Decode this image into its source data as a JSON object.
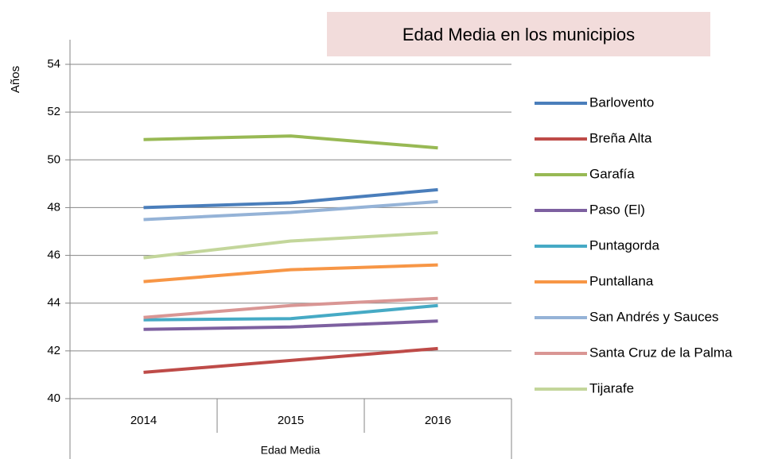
{
  "chart_data": {
    "type": "line",
    "title": "Edad Media en los municipios",
    "y_label": "Años",
    "x_label": "Edad Media",
    "categories": [
      "2014",
      "2015",
      "2016"
    ],
    "series": [
      {
        "name": "Barlovento",
        "color": "#4a7ebb",
        "values": [
          48.0,
          48.2,
          48.75
        ]
      },
      {
        "name": "Breña Alta",
        "color": "#be4b48",
        "values": [
          41.1,
          41.6,
          42.1
        ]
      },
      {
        "name": "Garafía",
        "color": "#98b954",
        "values": [
          50.85,
          51.0,
          50.5
        ]
      },
      {
        "name": "Paso (El)",
        "color": "#7d60a0",
        "values": [
          42.9,
          43.0,
          43.25
        ]
      },
      {
        "name": "Puntagorda",
        "color": "#46aac5",
        "values": [
          43.3,
          43.35,
          43.9
        ]
      },
      {
        "name": "Puntallana",
        "color": "#f79646",
        "values": [
          44.9,
          45.4,
          45.6
        ]
      },
      {
        "name": "San Andrés y Sauces",
        "color": "#95b3d7",
        "values": [
          47.5,
          47.8,
          48.25
        ]
      },
      {
        "name": "Santa Cruz de la Palma",
        "color": "#d99694",
        "values": [
          43.4,
          43.9,
          44.2
        ]
      },
      {
        "name": "Tijarafe",
        "color": "#c3d69b",
        "values": [
          45.9,
          46.6,
          46.95
        ]
      }
    ],
    "ylim": [
      40,
      54
    ],
    "yticks": [
      40,
      42,
      44,
      46,
      48,
      50,
      52,
      54
    ],
    "grid": true,
    "legend": "right"
  }
}
